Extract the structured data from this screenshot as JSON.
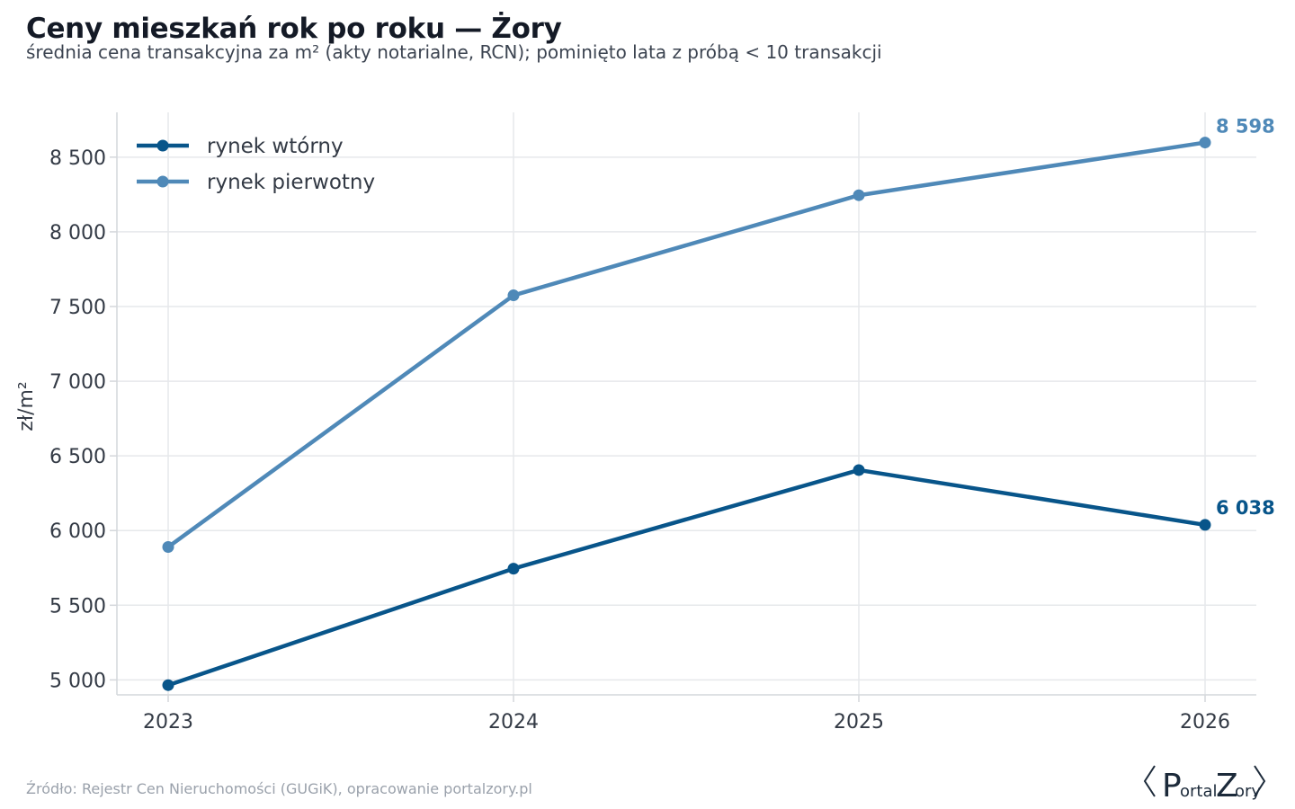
{
  "header": {
    "title": "Ceny mieszkań rok po roku — Żory",
    "subtitle": "średnia cena transakcyjna za m² (akty notarialne, RCN); pominięto lata z próbą < 10 transakcji"
  },
  "footer": {
    "source": "Źródło: Rejestr Cen Nieruchomości (GUGiK), opracowanie portalzory.pl",
    "logo_text": "PortalZory"
  },
  "colors": {
    "secondary": "#08558a",
    "primary": "#4f89b8",
    "grid": "#e6e8eb",
    "axis": "#d4d7db"
  },
  "chart_data": {
    "type": "line",
    "title": "Ceny mieszkań rok po roku — Żory",
    "subtitle": "średnia cena transakcyjna za m² (akty notarialne, RCN); pominięto lata z próbą < 10 transakcji",
    "xlabel": "",
    "ylabel": "zł/m²",
    "x": [
      2023,
      2024,
      2025,
      2026
    ],
    "x_tick_labels": [
      "2023",
      "2024",
      "2025",
      "2026"
    ],
    "ylim": [
      4900,
      8800
    ],
    "y_ticks": [
      5000,
      5500,
      6000,
      6500,
      7000,
      7500,
      8000,
      8500
    ],
    "y_tick_labels": [
      "5 000",
      "5 500",
      "6 000",
      "6 500",
      "7 000",
      "7 500",
      "8 000",
      "8 500"
    ],
    "grid": true,
    "legend_position": "top-left",
    "series": [
      {
        "name": "rynek wtórny",
        "color": "#08558a",
        "values": [
          4965,
          5745,
          6405,
          6038
        ],
        "end_label": "6 038"
      },
      {
        "name": "rynek pierwotny",
        "color": "#4f89b8",
        "values": [
          5890,
          7575,
          8245,
          8598
        ],
        "end_label": "8 598"
      }
    ]
  }
}
